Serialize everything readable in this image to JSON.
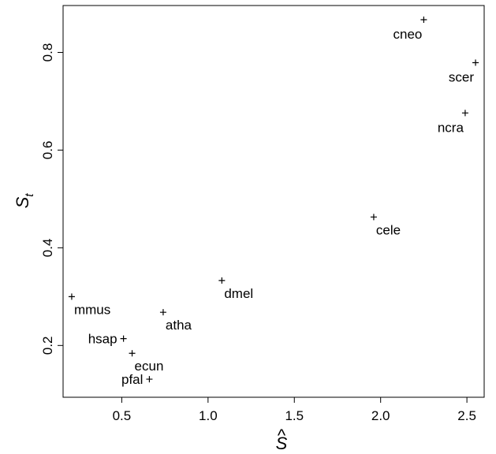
{
  "chart_data": {
    "type": "scatter",
    "xlabel": "S",
    "xlabel_accent": "^",
    "ylabel_main": "S",
    "ylabel_sub": "t",
    "xlim": [
      0.16,
      2.6
    ],
    "ylim": [
      0.094,
      0.896
    ],
    "xticks": [
      {
        "value": 0.5,
        "label": "0.5"
      },
      {
        "value": 1.0,
        "label": "1.0"
      },
      {
        "value": 1.5,
        "label": "1.5"
      },
      {
        "value": 2.0,
        "label": "2.0"
      },
      {
        "value": 2.5,
        "label": "2.5"
      }
    ],
    "yticks": [
      {
        "value": 0.2,
        "label": "0.2"
      },
      {
        "value": 0.4,
        "label": "0.4"
      },
      {
        "value": 0.6,
        "label": "0.6"
      },
      {
        "value": 0.8,
        "label": "0.8"
      }
    ],
    "grid": false,
    "marker": "+",
    "points": [
      {
        "label": "cneo",
        "x": 2.25,
        "y": 0.867,
        "label_pos": "below-left"
      },
      {
        "label": "scer",
        "x": 2.55,
        "y": 0.779,
        "label_pos": "below-left"
      },
      {
        "label": "ncra",
        "x": 2.49,
        "y": 0.676,
        "label_pos": "below-left"
      },
      {
        "label": "cele",
        "x": 1.96,
        "y": 0.463,
        "label_pos": "below-right"
      },
      {
        "label": "dmel",
        "x": 1.08,
        "y": 0.333,
        "label_pos": "below-right"
      },
      {
        "label": "mmus",
        "x": 0.21,
        "y": 0.3,
        "label_pos": "below-right"
      },
      {
        "label": "atha",
        "x": 0.74,
        "y": 0.268,
        "label_pos": "below-right"
      },
      {
        "label": "hsap",
        "x": 0.51,
        "y": 0.214,
        "label_pos": "left"
      },
      {
        "label": "ecun",
        "x": 0.56,
        "y": 0.184,
        "label_pos": "below-right"
      },
      {
        "label": "pfal",
        "x": 0.66,
        "y": 0.131,
        "label_pos": "left"
      }
    ]
  }
}
